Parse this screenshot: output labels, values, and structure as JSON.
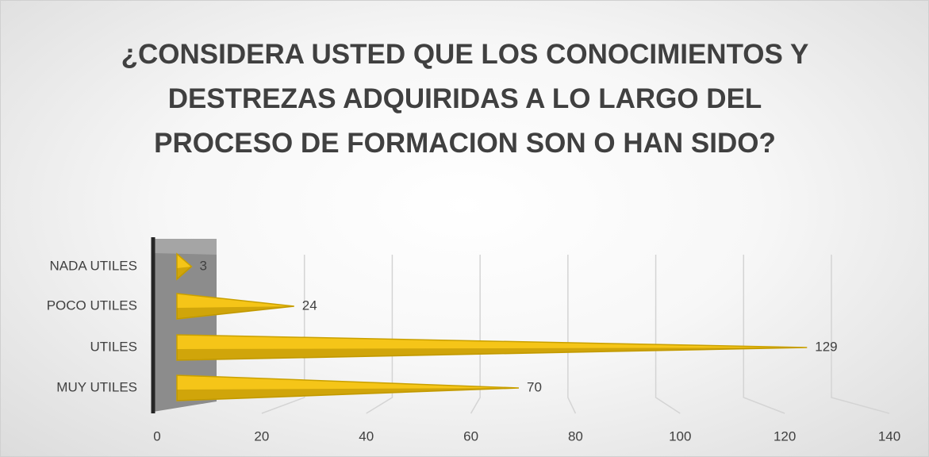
{
  "chart_data": {
    "type": "cone-bar",
    "title": "¿CONSIDERA USTED QUE LOS CONOCIMIENTOS Y DESTREZAS ADQUIRIDAS A LO LARGO DEL PROCESO DE FORMACION SON O HAN SIDO?",
    "categories": [
      "NADA UTILES",
      "POCO UTILES",
      "UTILES",
      "MUY UTILES"
    ],
    "values": [
      3,
      24,
      129,
      70
    ],
    "color": "#f5c518",
    "xlim": [
      0,
      140
    ],
    "xticks": [
      0,
      20,
      40,
      60,
      80,
      100,
      120,
      140
    ],
    "grid": true
  }
}
